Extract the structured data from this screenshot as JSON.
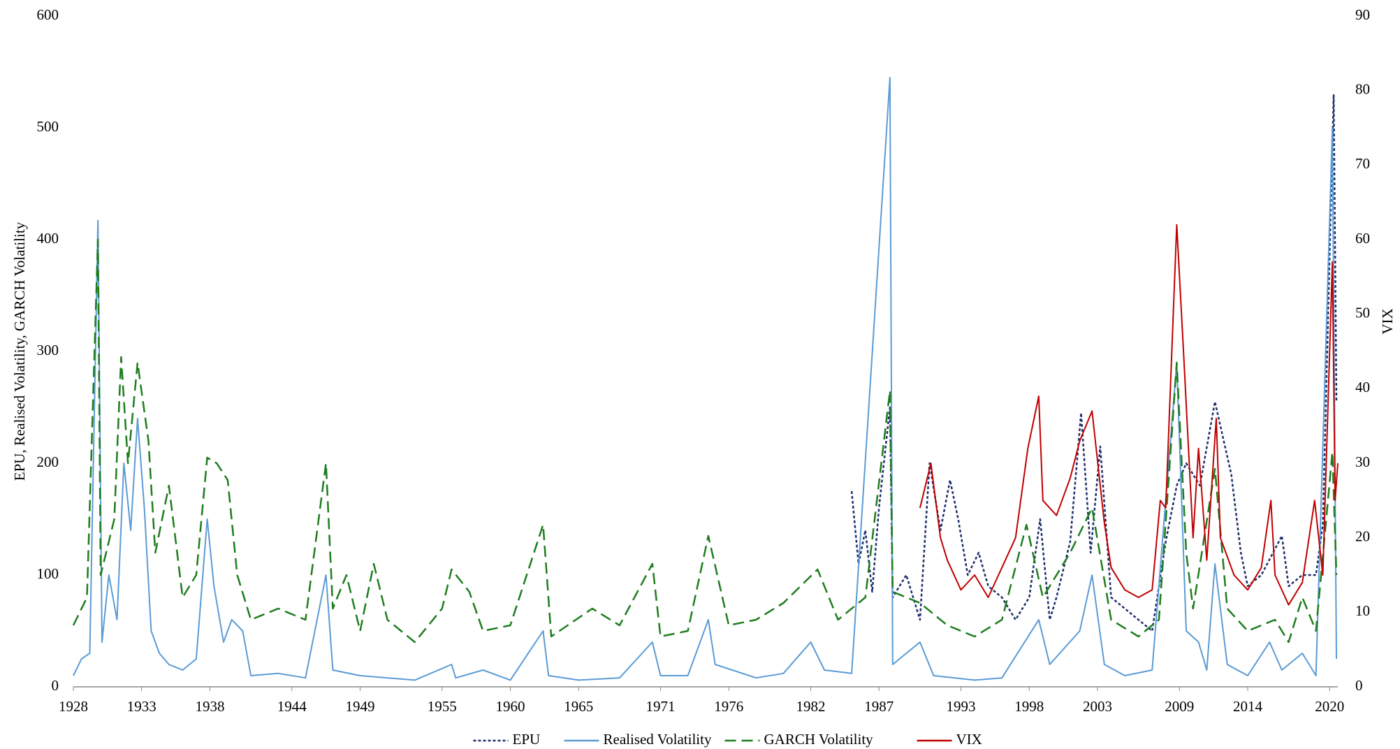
{
  "chart_data": {
    "type": "line",
    "y_label": "EPU, Realised Volatility, GARCH Volatility",
    "y2_label": "VIX",
    "xlim": [
      1928,
      2020.6
    ],
    "xticks": [
      1928,
      1933,
      1938,
      1944,
      1949,
      1955,
      1960,
      1965,
      1971,
      1976,
      1982,
      1987,
      1993,
      1998,
      2003,
      2009,
      2014,
      2020
    ],
    "ylim": [
      0,
      600
    ],
    "yticks": [
      0,
      100,
      200,
      300,
      400,
      500,
      600
    ],
    "y2lim": [
      0,
      90
    ],
    "y2ticks": [
      0,
      10,
      20,
      30,
      40,
      50,
      60,
      70,
      80,
      90
    ],
    "grid": false,
    "legend": "bottom",
    "series": [
      {
        "name": "EPU",
        "color": "#1f2f6b",
        "dash": "dotted",
        "axis": "y",
        "x": [
          1985,
          1985.5,
          1986,
          1986.5,
          1987,
          1987.8,
          1988,
          1989,
          1990,
          1990.7,
          1991.5,
          1992.2,
          1992.8,
          1993.5,
          1994.3,
          1995,
          1996,
          1997,
          1998,
          1998.8,
          1999.5,
          2000,
          2001,
          2001.8,
          2002.5,
          2003.2,
          2004,
          2005,
          2006,
          2007,
          2008,
          2008.8,
          2009.5,
          2010.5,
          2011.6,
          2012.8,
          2013.5,
          2014,
          2015,
          2016.5,
          2017,
          2018,
          2019,
          2019.5,
          2020.3,
          2020.5
        ],
        "values": [
          175,
          110,
          140,
          85,
          160,
          250,
          80,
          100,
          60,
          200,
          140,
          185,
          150,
          100,
          120,
          90,
          80,
          60,
          80,
          150,
          60,
          80,
          130,
          245,
          120,
          215,
          80,
          70,
          60,
          50,
          130,
          180,
          200,
          180,
          255,
          190,
          120,
          90,
          100,
          135,
          90,
          100,
          100,
          145,
          530,
          255
        ]
      },
      {
        "name": "Realised Volatility",
        "color": "#5b9bd5",
        "dash": "solid",
        "axis": "y",
        "x": [
          1928,
          1928.6,
          1929.2,
          1929.8,
          1930.1,
          1930.6,
          1931.2,
          1931.7,
          1932.2,
          1932.7,
          1933.2,
          1933.7,
          1934.3,
          1935,
          1936,
          1937,
          1937.8,
          1938.3,
          1939,
          1939.6,
          1940.4,
          1941,
          1943,
          1945,
          1946.5,
          1947,
          1949,
          1951,
          1953,
          1955.7,
          1956,
          1958,
          1960,
          1962.4,
          1962.8,
          1965,
          1968,
          1970.4,
          1971,
          1973,
          1974.5,
          1975,
          1978,
          1980,
          1982,
          1983,
          1985,
          1987.8,
          1988,
          1990,
          1991,
          1994,
          1996,
          1998.7,
          1999.5,
          2001.7,
          2002.6,
          2003.5,
          2005,
          2007,
          2008.8,
          2009.5,
          2010.4,
          2011,
          2011.6,
          2012.5,
          2014,
          2015.6,
          2016.5,
          2018,
          2019,
          2020.2,
          2020.5
        ],
        "values": [
          10,
          25,
          30,
          417,
          40,
          100,
          60,
          200,
          140,
          240,
          160,
          50,
          30,
          20,
          15,
          25,
          150,
          90,
          40,
          60,
          50,
          10,
          12,
          8,
          100,
          15,
          10,
          8,
          6,
          20,
          8,
          15,
          6,
          50,
          10,
          6,
          8,
          40,
          10,
          10,
          60,
          20,
          8,
          12,
          40,
          15,
          12,
          545,
          20,
          40,
          10,
          6,
          8,
          60,
          20,
          50,
          100,
          20,
          10,
          15,
          290,
          50,
          40,
          15,
          110,
          20,
          10,
          40,
          15,
          30,
          10,
          500,
          25
        ]
      },
      {
        "name": "GARCH Volatility",
        "color": "#1e7d1e",
        "dash": "dashed",
        "axis": "y",
        "x": [
          1928,
          1929,
          1929.8,
          1930,
          1931,
          1931.5,
          1932,
          1932.7,
          1933.5,
          1934,
          1935,
          1936,
          1937,
          1937.8,
          1938.5,
          1939.3,
          1940,
          1941,
          1943,
          1945,
          1946.5,
          1947,
          1948,
          1949,
          1950,
          1951,
          1953,
          1955,
          1955.7,
          1957,
          1958,
          1960,
          1962.4,
          1963,
          1966,
          1968,
          1970.4,
          1971,
          1973,
          1974.5,
          1976,
          1978,
          1980,
          1982.5,
          1984,
          1986,
          1987.8,
          1988,
          1990,
          1992,
          1994,
          1996,
          1997.8,
          1999,
          2001,
          2002.6,
          2004,
          2006,
          2007.5,
          2008.8,
          2009.5,
          2010,
          2011.6,
          2012.5,
          2014,
          2016,
          2017,
          2018,
          2019,
          2020.2,
          2020.5
        ],
        "values": [
          55,
          80,
          400,
          100,
          150,
          295,
          200,
          290,
          220,
          120,
          180,
          80,
          100,
          205,
          200,
          185,
          100,
          60,
          70,
          60,
          200,
          70,
          100,
          50,
          110,
          60,
          40,
          70,
          105,
          85,
          50,
          55,
          145,
          45,
          70,
          55,
          110,
          45,
          50,
          135,
          55,
          60,
          75,
          105,
          60,
          80,
          265,
          85,
          75,
          55,
          45,
          60,
          145,
          80,
          120,
          160,
          60,
          45,
          60,
          290,
          120,
          70,
          195,
          70,
          50,
          60,
          40,
          80,
          50,
          210,
          100
        ]
      },
      {
        "name": "VIX",
        "color": "#c00000",
        "dash": "solid",
        "axis": "y2",
        "x": [
          1990,
          1990.8,
          1991.5,
          1992,
          1993,
          1994,
          1995,
          1996,
          1997,
          1997.9,
          1998.7,
          1999,
          2000,
          2001,
          2001.7,
          2002.6,
          2003.5,
          2004,
          2005,
          2006,
          2007,
          2007.6,
          2008,
          2008.8,
          2009.3,
          2010,
          2010.4,
          2011,
          2011.7,
          2012,
          2013,
          2014,
          2015,
          2015.7,
          2016,
          2017,
          2018,
          2018.9,
          2019.5,
          2020.2,
          2020.4,
          2020.6
        ],
        "values": [
          24,
          30,
          20,
          17,
          13,
          15,
          12,
          16,
          20,
          32,
          39,
          25,
          23,
          28,
          33,
          37,
          22,
          16,
          13,
          12,
          13,
          25,
          24,
          62,
          45,
          20,
          32,
          17,
          36,
          20,
          15,
          13,
          16,
          25,
          15,
          11,
          14,
          25,
          15,
          57,
          25,
          30
        ]
      }
    ]
  }
}
